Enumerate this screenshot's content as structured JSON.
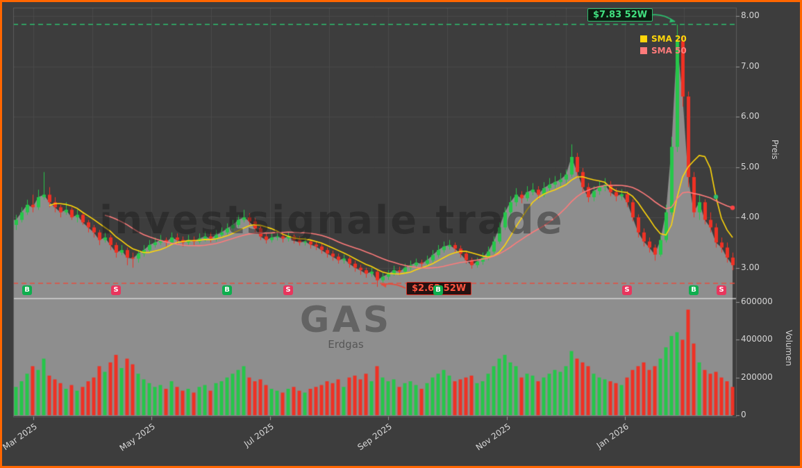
{
  "app": {
    "background": "#3d3d3d",
    "border_color": "#ff6600"
  },
  "chart_data": {
    "type": "candlestick",
    "watermarks": {
      "brand": "investsignale.trade",
      "symbol": "GAS",
      "name": "Erdgas"
    },
    "price_axis": {
      "title": "Preis",
      "ticks": [
        {
          "label": "8.00",
          "value": 8.0
        },
        {
          "label": "7.00",
          "value": 7.0
        },
        {
          "label": "6.00",
          "value": 6.0
        },
        {
          "label": "5.00",
          "value": 5.0
        },
        {
          "label": "4.00",
          "value": 4.0
        },
        {
          "label": "3.00",
          "value": 3.0
        }
      ],
      "range": [
        2.4,
        8.16
      ]
    },
    "volume_axis": {
      "title": "Volumen",
      "ticks": [
        {
          "label": "600000",
          "value": 600000
        },
        {
          "label": "400000",
          "value": 400000
        },
        {
          "label": "200000",
          "value": 200000
        },
        {
          "label": "0",
          "value": 0
        }
      ],
      "range": [
        0,
        600000
      ]
    },
    "x_ticks": [
      "Mar 2025",
      "May 2025",
      "Jul 2025",
      "Sep 2025",
      "Nov 2025",
      "Jan 2026"
    ],
    "legend": [
      {
        "label": "SMA 20",
        "color": "#ffd60a",
        "window": 7
      },
      {
        "label": "SMA 50",
        "color": "#ff7b7b",
        "window": 17
      }
    ],
    "annotations": {
      "high_line": {
        "value": 7.83,
        "label": "$7.83 52W",
        "color": "#2dbd6e",
        "peak_index": 119
      },
      "low_line": {
        "value": 2.62,
        "label": "$2.62 52W",
        "color": "#e74c3c",
        "trough_index": 65
      }
    },
    "markers": [
      {
        "type": "B",
        "index": 2
      },
      {
        "type": "S",
        "index": 18
      },
      {
        "type": "B",
        "index": 38
      },
      {
        "type": "S",
        "index": 49
      },
      {
        "type": "B",
        "index": 76
      },
      {
        "type": "S",
        "index": 110
      },
      {
        "type": "B",
        "index": 122
      },
      {
        "type": "S",
        "index": 127
      }
    ],
    "dots": [
      {
        "series": "sma20",
        "index": 126,
        "color": "#2dbd6e"
      },
      {
        "series": "sma50",
        "index": 129,
        "color": "#ff4444"
      }
    ],
    "colors": {
      "up": "#26c64a",
      "down": "#ef3124",
      "fill": "rgba(146,146,146,0.95)",
      "grid": "#4a4a4a",
      "divider": "rgba(225,225,225,0.85)",
      "frame": "#5c5c5c",
      "tick": "#9a9a9a"
    },
    "candles": [
      [
        3.85,
        4.05,
        3.75,
        3.95,
        150000
      ],
      [
        3.95,
        4.2,
        3.9,
        4.1,
        180000
      ],
      [
        4.1,
        4.35,
        4.05,
        4.25,
        220000
      ],
      [
        4.25,
        4.45,
        4.1,
        4.2,
        260000
      ],
      [
        4.2,
        4.55,
        4.15,
        4.4,
        240000
      ],
      [
        4.4,
        4.9,
        4.35,
        4.45,
        300000
      ],
      [
        4.45,
        4.6,
        4.2,
        4.3,
        210000
      ],
      [
        4.3,
        4.4,
        4.1,
        4.2,
        190000
      ],
      [
        4.2,
        4.25,
        4.0,
        4.1,
        170000
      ],
      [
        4.1,
        4.3,
        4.05,
        4.15,
        140000
      ],
      [
        4.15,
        4.2,
        3.95,
        4.0,
        160000
      ],
      [
        4.0,
        4.15,
        3.9,
        4.05,
        130000
      ],
      [
        4.05,
        4.1,
        3.85,
        3.9,
        150000
      ],
      [
        3.9,
        3.95,
        3.7,
        3.8,
        180000
      ],
      [
        3.8,
        3.85,
        3.6,
        3.7,
        200000
      ],
      [
        3.7,
        3.75,
        3.45,
        3.55,
        260000
      ],
      [
        3.55,
        3.7,
        3.5,
        3.6,
        230000
      ],
      [
        3.6,
        3.65,
        3.35,
        3.45,
        280000
      ],
      [
        3.45,
        3.5,
        3.2,
        3.3,
        320000
      ],
      [
        3.3,
        3.45,
        3.25,
        3.35,
        250000
      ],
      [
        3.35,
        3.4,
        3.05,
        3.2,
        300000
      ],
      [
        3.2,
        3.3,
        3.0,
        3.18,
        270000
      ],
      [
        3.18,
        3.35,
        3.1,
        3.28,
        220000
      ],
      [
        3.28,
        3.45,
        3.22,
        3.35,
        190000
      ],
      [
        3.35,
        3.55,
        3.3,
        3.45,
        170000
      ],
      [
        3.45,
        3.6,
        3.4,
        3.5,
        150000
      ],
      [
        3.5,
        3.65,
        3.45,
        3.55,
        160000
      ],
      [
        3.55,
        3.6,
        3.42,
        3.5,
        140000
      ],
      [
        3.5,
        3.7,
        3.45,
        3.6,
        180000
      ],
      [
        3.6,
        3.68,
        3.48,
        3.55,
        150000
      ],
      [
        3.55,
        3.62,
        3.42,
        3.5,
        130000
      ],
      [
        3.5,
        3.65,
        3.45,
        3.55,
        140000
      ],
      [
        3.55,
        3.62,
        3.45,
        3.52,
        120000
      ],
      [
        3.52,
        3.68,
        3.48,
        3.58,
        150000
      ],
      [
        3.58,
        3.72,
        3.52,
        3.62,
        160000
      ],
      [
        3.62,
        3.7,
        3.5,
        3.58,
        130000
      ],
      [
        3.58,
        3.75,
        3.52,
        3.65,
        170000
      ],
      [
        3.65,
        3.8,
        3.6,
        3.7,
        180000
      ],
      [
        3.7,
        3.88,
        3.65,
        3.78,
        200000
      ],
      [
        3.78,
        3.95,
        3.72,
        3.85,
        220000
      ],
      [
        3.85,
        4.05,
        3.8,
        3.95,
        240000
      ],
      [
        3.95,
        4.15,
        3.9,
        4.0,
        260000
      ],
      [
        4.0,
        4.08,
        3.85,
        3.92,
        200000
      ],
      [
        3.92,
        3.98,
        3.7,
        3.78,
        180000
      ],
      [
        3.78,
        3.82,
        3.55,
        3.62,
        190000
      ],
      [
        3.62,
        3.68,
        3.48,
        3.55,
        160000
      ],
      [
        3.55,
        3.7,
        3.5,
        3.6,
        140000
      ],
      [
        3.6,
        3.72,
        3.54,
        3.62,
        130000
      ],
      [
        3.62,
        3.68,
        3.5,
        3.58,
        120000
      ],
      [
        3.58,
        3.7,
        3.52,
        3.62,
        140000
      ],
      [
        3.62,
        3.66,
        3.48,
        3.55,
        150000
      ],
      [
        3.55,
        3.62,
        3.44,
        3.5,
        130000
      ],
      [
        3.5,
        3.6,
        3.44,
        3.52,
        120000
      ],
      [
        3.52,
        3.56,
        3.38,
        3.46,
        140000
      ],
      [
        3.46,
        3.52,
        3.35,
        3.42,
        150000
      ],
      [
        3.42,
        3.48,
        3.28,
        3.35,
        160000
      ],
      [
        3.35,
        3.4,
        3.2,
        3.28,
        180000
      ],
      [
        3.28,
        3.34,
        3.14,
        3.22,
        170000
      ],
      [
        3.22,
        3.28,
        3.08,
        3.15,
        190000
      ],
      [
        3.15,
        3.26,
        3.08,
        3.18,
        150000
      ],
      [
        3.18,
        3.22,
        3.0,
        3.08,
        200000
      ],
      [
        3.08,
        3.14,
        2.92,
        3.0,
        210000
      ],
      [
        3.0,
        3.06,
        2.86,
        2.95,
        190000
      ],
      [
        2.95,
        3.0,
        2.8,
        2.88,
        220000
      ],
      [
        2.88,
        3.0,
        2.82,
        2.92,
        180000
      ],
      [
        2.92,
        2.95,
        2.62,
        2.75,
        260000
      ],
      [
        2.75,
        2.9,
        2.7,
        2.82,
        200000
      ],
      [
        2.82,
        2.95,
        2.76,
        2.88,
        180000
      ],
      [
        2.88,
        3.04,
        2.84,
        2.95,
        190000
      ],
      [
        2.95,
        3.02,
        2.85,
        2.92,
        150000
      ],
      [
        2.92,
        3.08,
        2.88,
        3.0,
        170000
      ],
      [
        3.0,
        3.14,
        2.95,
        3.05,
        180000
      ],
      [
        3.05,
        3.18,
        3.0,
        3.1,
        160000
      ],
      [
        3.1,
        3.16,
        3.0,
        3.08,
        140000
      ],
      [
        3.08,
        3.24,
        3.04,
        3.15,
        170000
      ],
      [
        3.15,
        3.35,
        3.1,
        3.25,
        200000
      ],
      [
        3.25,
        3.45,
        3.2,
        3.35,
        220000
      ],
      [
        3.35,
        3.52,
        3.3,
        3.42,
        240000
      ],
      [
        3.42,
        3.55,
        3.36,
        3.45,
        210000
      ],
      [
        3.45,
        3.5,
        3.3,
        3.38,
        180000
      ],
      [
        3.38,
        3.44,
        3.2,
        3.28,
        190000
      ],
      [
        3.28,
        3.32,
        3.08,
        3.15,
        200000
      ],
      [
        3.15,
        3.2,
        2.98,
        3.05,
        210000
      ],
      [
        3.05,
        3.2,
        3.0,
        3.12,
        170000
      ],
      [
        3.12,
        3.3,
        3.06,
        3.2,
        180000
      ],
      [
        3.2,
        3.42,
        3.15,
        3.32,
        220000
      ],
      [
        3.32,
        3.62,
        3.28,
        3.52,
        260000
      ],
      [
        3.52,
        3.9,
        3.48,
        3.8,
        300000
      ],
      [
        3.8,
        4.2,
        3.75,
        4.1,
        320000
      ],
      [
        4.1,
        4.42,
        4.02,
        4.3,
        280000
      ],
      [
        4.3,
        4.58,
        4.22,
        4.45,
        260000
      ],
      [
        4.45,
        4.52,
        4.28,
        4.38,
        200000
      ],
      [
        4.38,
        4.62,
        4.32,
        4.5,
        220000
      ],
      [
        4.5,
        4.68,
        4.44,
        4.55,
        210000
      ],
      [
        4.55,
        4.62,
        4.36,
        4.45,
        180000
      ],
      [
        4.45,
        4.7,
        4.4,
        4.58,
        200000
      ],
      [
        4.58,
        4.78,
        4.52,
        4.65,
        220000
      ],
      [
        4.65,
        4.82,
        4.58,
        4.7,
        240000
      ],
      [
        4.7,
        4.88,
        4.62,
        4.75,
        230000
      ],
      [
        4.75,
        4.95,
        4.68,
        4.85,
        260000
      ],
      [
        4.85,
        5.45,
        4.8,
        5.2,
        340000
      ],
      [
        5.2,
        5.28,
        4.78,
        4.9,
        300000
      ],
      [
        4.9,
        4.98,
        4.5,
        4.6,
        280000
      ],
      [
        4.6,
        4.68,
        4.3,
        4.4,
        260000
      ],
      [
        4.4,
        4.62,
        4.32,
        4.52,
        220000
      ],
      [
        4.52,
        4.72,
        4.45,
        4.6,
        200000
      ],
      [
        4.6,
        4.78,
        4.52,
        4.65,
        190000
      ],
      [
        4.65,
        4.72,
        4.42,
        4.5,
        180000
      ],
      [
        4.5,
        4.58,
        4.32,
        4.42,
        170000
      ],
      [
        4.42,
        4.56,
        4.34,
        4.46,
        160000
      ],
      [
        4.46,
        4.52,
        4.2,
        4.3,
        200000
      ],
      [
        4.3,
        4.36,
        3.92,
        4.0,
        240000
      ],
      [
        4.0,
        4.06,
        3.6,
        3.7,
        260000
      ],
      [
        3.7,
        3.78,
        3.42,
        3.52,
        280000
      ],
      [
        3.52,
        3.6,
        3.3,
        3.4,
        240000
      ],
      [
        3.4,
        3.46,
        3.14,
        3.26,
        260000
      ],
      [
        3.26,
        3.65,
        3.22,
        3.55,
        300000
      ],
      [
        3.55,
        4.25,
        3.5,
        4.1,
        360000
      ],
      [
        4.1,
        5.6,
        4.05,
        5.4,
        420000
      ],
      [
        5.4,
        7.83,
        5.3,
        7.5,
        440000
      ],
      [
        7.5,
        7.6,
        6.2,
        6.4,
        400000
      ],
      [
        6.4,
        6.5,
        4.6,
        4.8,
        560000
      ],
      [
        4.8,
        4.9,
        4.0,
        4.1,
        380000
      ],
      [
        4.1,
        4.45,
        3.95,
        4.3,
        280000
      ],
      [
        4.3,
        4.36,
        3.86,
        3.95,
        240000
      ],
      [
        3.95,
        4.1,
        3.7,
        3.8,
        220000
      ],
      [
        3.8,
        3.88,
        3.4,
        3.5,
        230000
      ],
      [
        3.5,
        3.6,
        3.3,
        3.4,
        200000
      ],
      [
        3.4,
        3.5,
        3.1,
        3.2,
        180000
      ],
      [
        3.2,
        3.3,
        2.95,
        3.05,
        150000
      ]
    ]
  }
}
